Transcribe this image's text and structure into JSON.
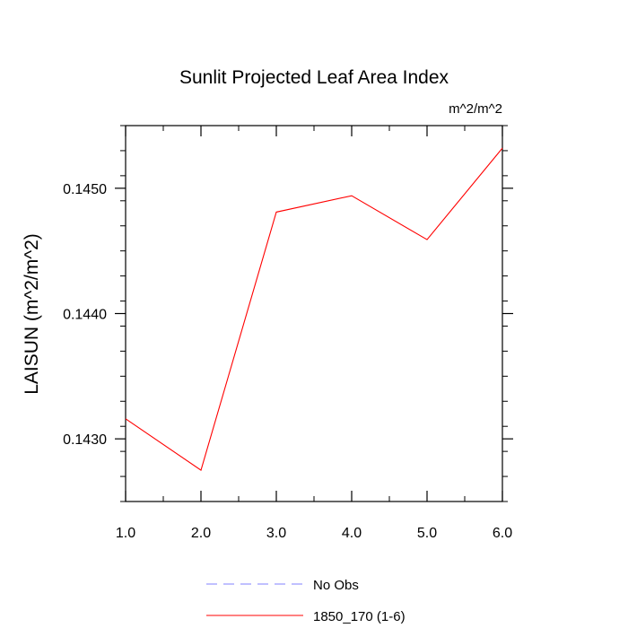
{
  "chart_data": {
    "type": "line",
    "title": "Sunlit Projected Leaf Area Index",
    "units_label": "m^2/m^2",
    "ylabel": "LAISUN  (m^2/m^2)",
    "xlabel": "",
    "xlim": [
      1.0,
      6.0
    ],
    "ylim": [
      0.1425,
      0.1455
    ],
    "x_ticks": [
      1.0,
      2.0,
      3.0,
      4.0,
      5.0,
      6.0
    ],
    "x_tick_labels": [
      "1.0",
      "2.0",
      "3.0",
      "4.0",
      "5.0",
      "6.0"
    ],
    "y_ticks": [
      0.143,
      0.144,
      0.145
    ],
    "y_tick_labels": [
      "0.1430",
      "0.1440",
      "0.1450"
    ],
    "y_minor_step": 0.0002,
    "x_minor_step": 0.5,
    "grid": false,
    "legend_position": "bottom-center",
    "series": [
      {
        "name": "1850_170 (1-6)",
        "color": "#ff0000",
        "dash": "solid",
        "x": [
          1.0,
          2.0,
          3.0,
          4.0,
          5.0,
          6.0
        ],
        "values": [
          0.14316,
          0.14275,
          0.14481,
          0.14494,
          0.14459,
          0.14532
        ]
      }
    ],
    "legend": [
      {
        "label": "No Obs",
        "color": "#8080ff",
        "dash": "dashed"
      },
      {
        "label": "1850_170 (1-6)",
        "color": "#ff0000",
        "dash": "solid"
      }
    ]
  }
}
